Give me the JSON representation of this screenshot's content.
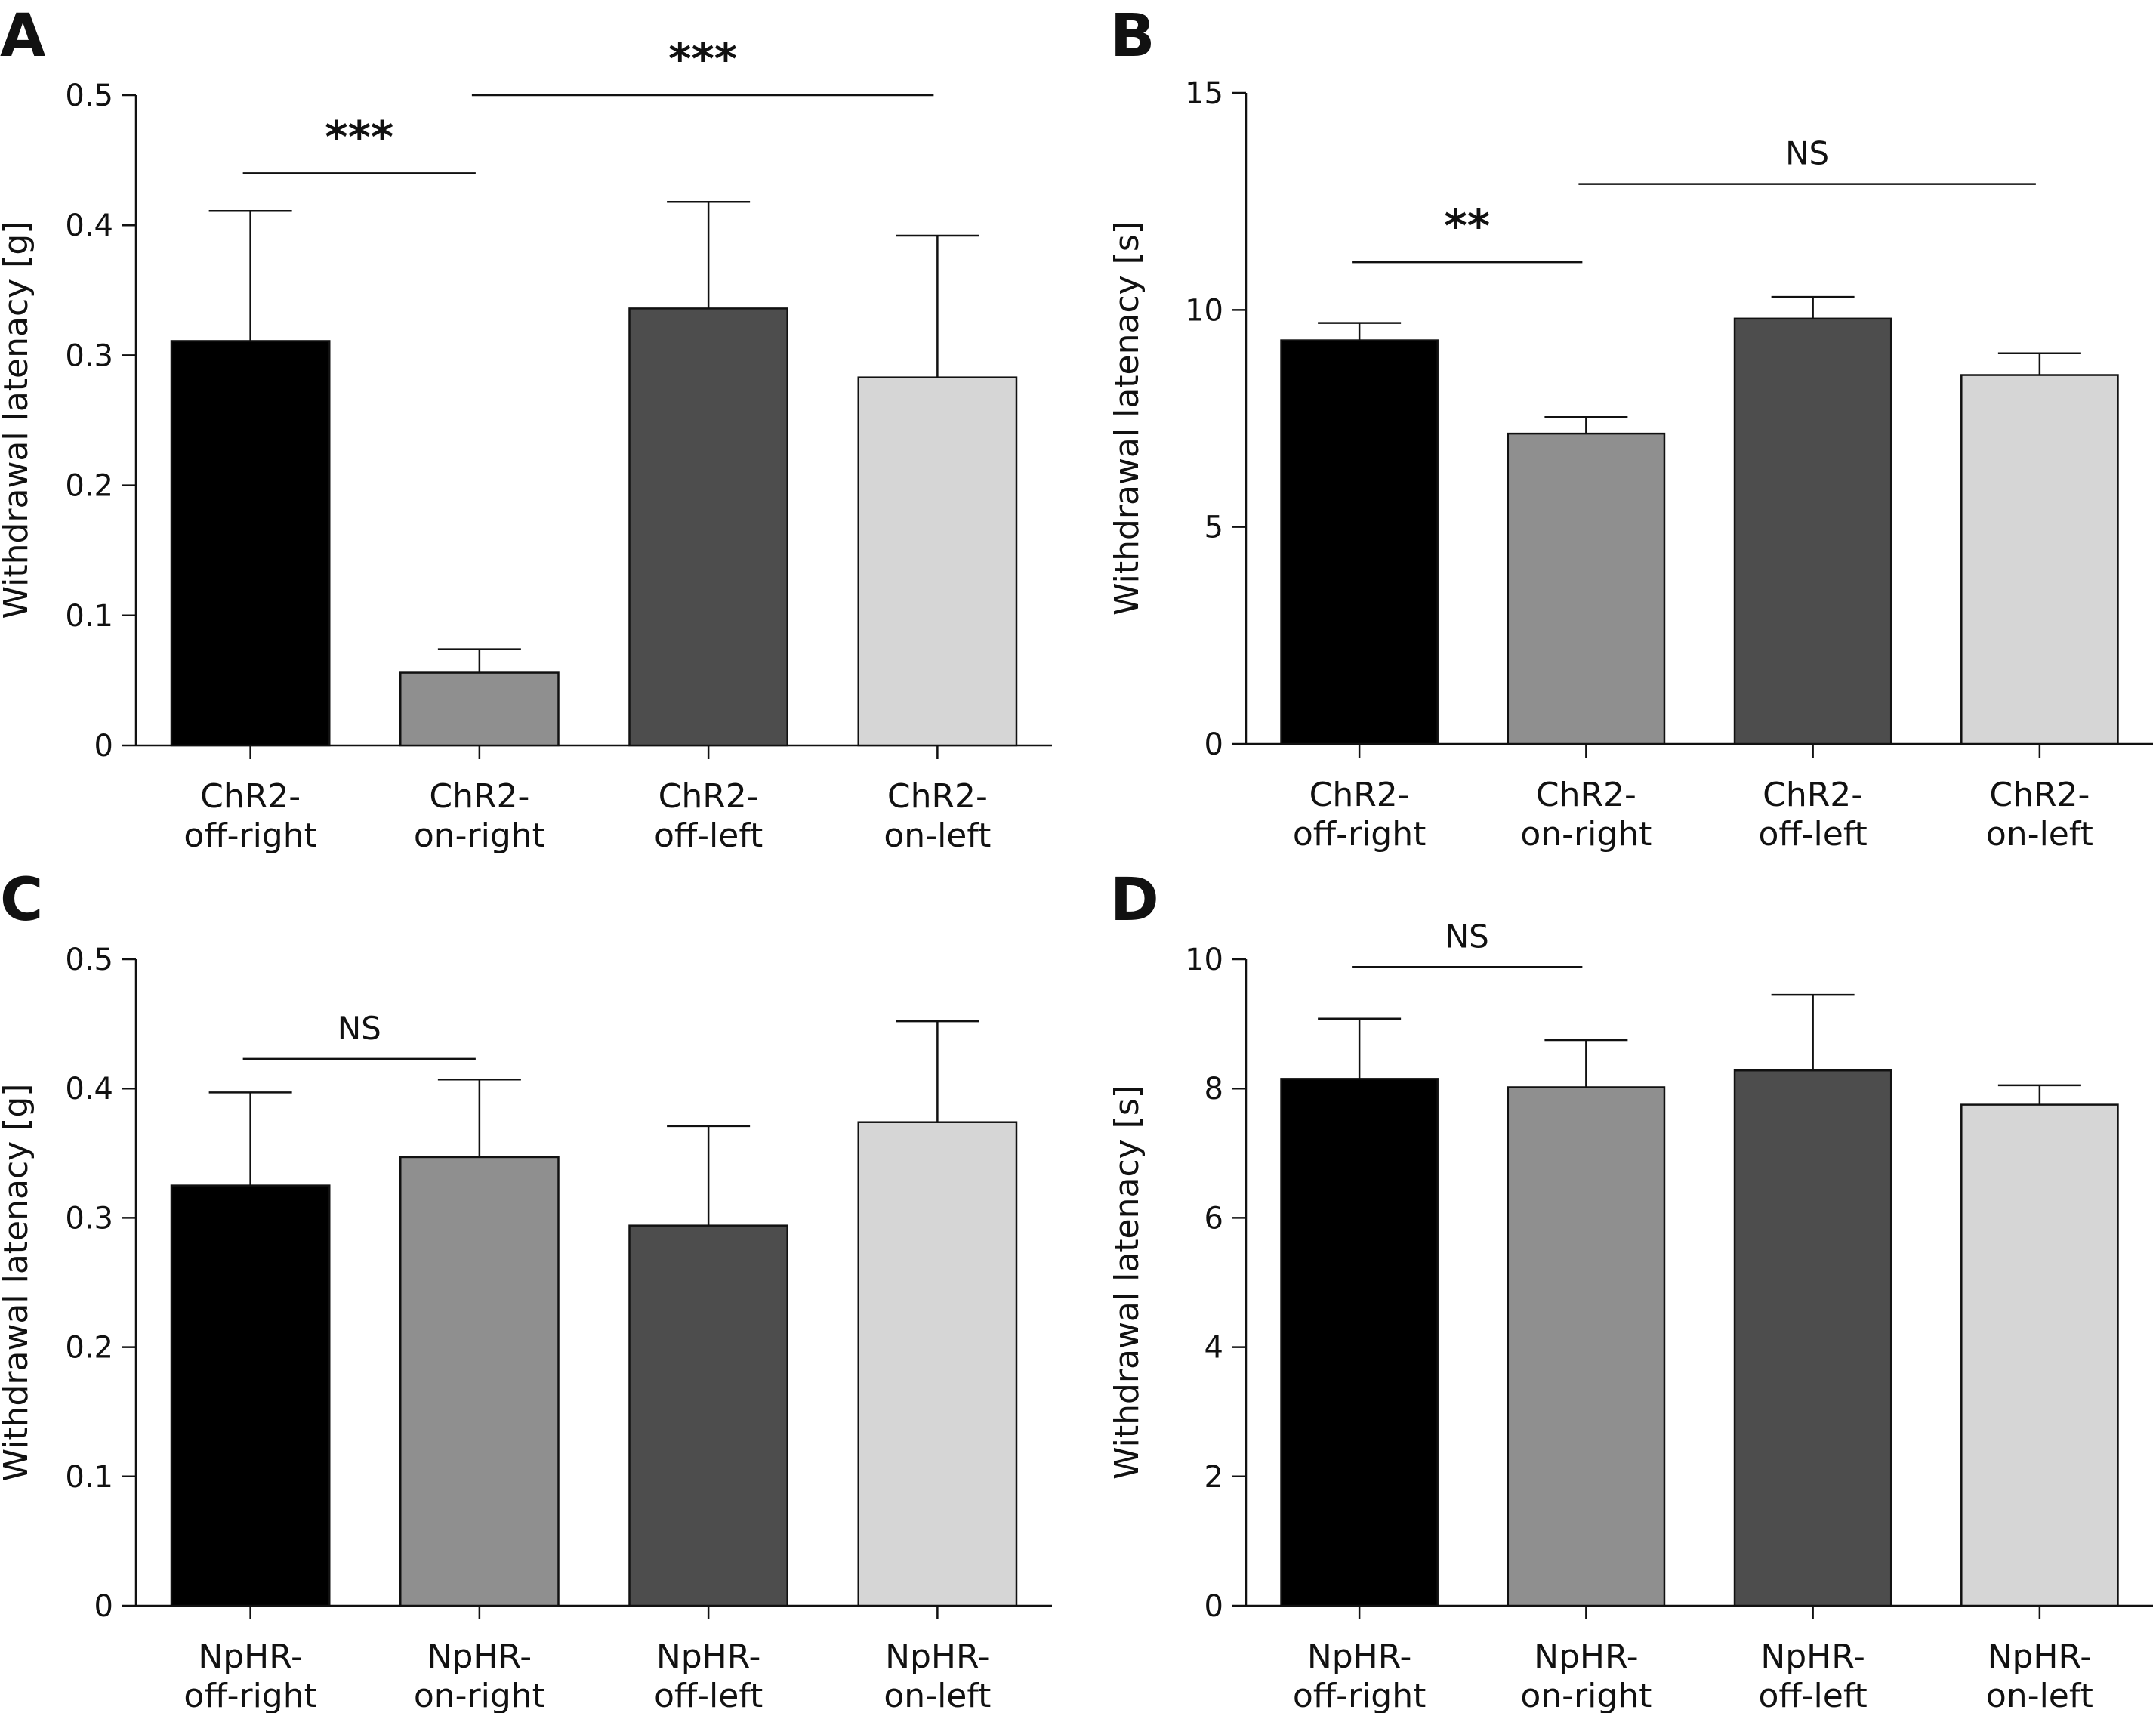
{
  "chart_data": [
    {
      "panel": "A",
      "type": "bar",
      "categories": [
        [
          "ChR2-",
          "off-right"
        ],
        [
          "ChR2-",
          "on-right"
        ],
        [
          "ChR2-",
          "off-left"
        ],
        [
          "ChR2-",
          "on-left"
        ]
      ],
      "values": [
        0.311,
        0.056,
        0.336,
        0.283
      ],
      "errors": [
        0.1,
        0.018,
        0.082,
        0.109
      ],
      "bar_colors": [
        "#000000",
        "#8f8f8f",
        "#4d4d4d",
        "#d6d6d6"
      ],
      "ylabel": "Withdrawal latenacy [g]",
      "ylim": [
        0,
        0.5
      ],
      "yticks": [
        0,
        0.1,
        0.2,
        0.3,
        0.4,
        0.5
      ],
      "ytick_labels": [
        "0",
        "0.1",
        "0.2",
        "0.3",
        "0.4",
        "0.5"
      ],
      "significance": [
        {
          "from": 0,
          "to": 1,
          "level": 0.44,
          "label": "***"
        },
        {
          "from": 1,
          "to": 3,
          "level": 0.5,
          "label": "***"
        }
      ]
    },
    {
      "panel": "B",
      "type": "bar",
      "categories": [
        [
          "ChR2-",
          "off-right"
        ],
        [
          "ChR2-",
          "on-right"
        ],
        [
          "ChR2-",
          "off-left"
        ],
        [
          "ChR2-",
          "on-left"
        ]
      ],
      "values": [
        9.3,
        7.15,
        9.8,
        8.5
      ],
      "errors": [
        0.4,
        0.38,
        0.5,
        0.5
      ],
      "bar_colors": [
        "#000000",
        "#8f8f8f",
        "#4d4d4d",
        "#d6d6d6"
      ],
      "ylabel": "Withdrawal latenacy [s]",
      "ylim": [
        0,
        15
      ],
      "yticks": [
        0,
        5,
        10,
        15
      ],
      "ytick_labels": [
        "0",
        "5",
        "10",
        "15"
      ],
      "significance": [
        {
          "from": 0,
          "to": 1,
          "level": 11.1,
          "label": "**"
        },
        {
          "from": 1,
          "to": 3,
          "level": 12.9,
          "label": "NS"
        }
      ]
    },
    {
      "panel": "C",
      "type": "bar",
      "categories": [
        [
          "NpHR-",
          "off-right"
        ],
        [
          "NpHR-",
          "on-right"
        ],
        [
          "NpHR-",
          "off-left"
        ],
        [
          "NpHR-",
          "on-left"
        ]
      ],
      "values": [
        0.325,
        0.347,
        0.294,
        0.374
      ],
      "errors": [
        0.072,
        0.06,
        0.077,
        0.078
      ],
      "bar_colors": [
        "#000000",
        "#8f8f8f",
        "#4d4d4d",
        "#d6d6d6"
      ],
      "ylabel": "Withdrawal latenacy [g]",
      "ylim": [
        0,
        0.5
      ],
      "yticks": [
        0,
        0.1,
        0.2,
        0.3,
        0.4,
        0.5
      ],
      "ytick_labels": [
        "0",
        "0.1",
        "0.2",
        "0.3",
        "0.4",
        "0.5"
      ],
      "significance": [
        {
          "from": 0,
          "to": 1,
          "level": 0.423,
          "label": "NS"
        }
      ]
    },
    {
      "panel": "D",
      "type": "bar",
      "categories": [
        [
          "NpHR-",
          "off-right"
        ],
        [
          "NpHR-",
          "on-right"
        ],
        [
          "NpHR-",
          "off-left"
        ],
        [
          "NpHR-",
          "on-left"
        ]
      ],
      "values": [
        8.15,
        8.02,
        8.28,
        7.75
      ],
      "errors": [
        0.93,
        0.73,
        1.17,
        0.3
      ],
      "bar_colors": [
        "#000000",
        "#8f8f8f",
        "#4d4d4d",
        "#d6d6d6"
      ],
      "ylabel": "Withdrawal latenacy [s]",
      "ylim": [
        0,
        10
      ],
      "yticks": [
        0,
        2,
        4,
        6,
        8,
        10
      ],
      "ytick_labels": [
        "0",
        "2",
        "4",
        "6",
        "8",
        "10"
      ],
      "significance": [
        {
          "from": 0,
          "to": 1,
          "level": 9.88,
          "label": "NS"
        }
      ]
    }
  ]
}
